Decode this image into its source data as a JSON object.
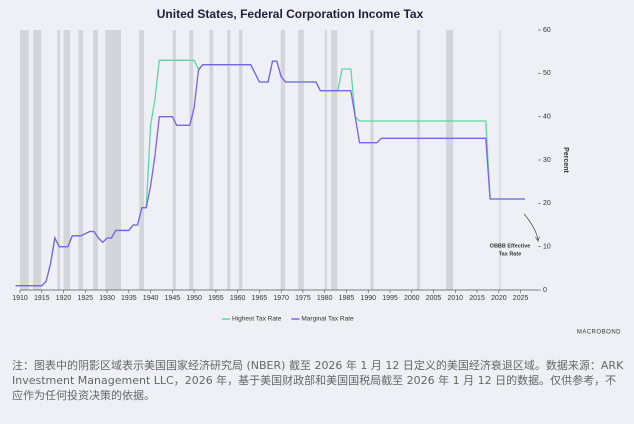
{
  "chart_data": {
    "type": "line",
    "title": "United States, Federal Corporation Income Tax",
    "y_label": "Percent",
    "x": [
      1909,
      1915,
      1916,
      1917,
      1918,
      1919,
      1921,
      1922,
      1924,
      1925,
      1926,
      1927,
      1928,
      1929,
      1930,
      1931,
      1932,
      1935,
      1936,
      1937,
      1938,
      1939,
      1940,
      1941,
      1942,
      1945,
      1946,
      1949,
      1950,
      1951,
      1952,
      1963,
      1964,
      1965,
      1967,
      1968,
      1969,
      1970,
      1971,
      1978,
      1979,
      1983,
      1984,
      1986,
      1987,
      1988,
      1992,
      1993,
      2017,
      2018,
      2026
    ],
    "series": [
      {
        "name": "Highest Tax Rate",
        "color": "#5ed6a2",
        "values": [
          1,
          1,
          2,
          6,
          12,
          10,
          10,
          12.5,
          12.5,
          13,
          13.5,
          13.5,
          12,
          11,
          12,
          12,
          13.75,
          13.75,
          15,
          15,
          19,
          19,
          38,
          44,
          53,
          53,
          53,
          53,
          53,
          51,
          52,
          52,
          50,
          48,
          48,
          52.8,
          52.8,
          49.2,
          48,
          48,
          46,
          46,
          51,
          51,
          40,
          39,
          39,
          39,
          39,
          21,
          21
        ]
      },
      {
        "name": "Marginal Tax Rate",
        "color": "#7a63e8",
        "values": [
          1,
          1,
          2,
          6,
          12,
          10,
          10,
          12.5,
          12.5,
          13,
          13.5,
          13.5,
          12,
          11,
          12,
          12,
          13.75,
          13.75,
          15,
          15,
          19,
          19,
          24,
          31,
          40,
          40,
          38,
          38,
          42,
          50.75,
          52,
          52,
          50,
          48,
          48,
          52.8,
          52.8,
          49.2,
          48,
          48,
          46,
          46,
          46,
          46,
          40,
          34,
          34,
          35,
          35,
          21,
          21
        ]
      }
    ],
    "recessions": [
      [
        1910,
        1912
      ],
      [
        1913,
        1914.9
      ],
      [
        1918.6,
        1919.2
      ],
      [
        1920,
        1921.5
      ],
      [
        1923.4,
        1924.5
      ],
      [
        1926.8,
        1927.9
      ],
      [
        1929.6,
        1933.2
      ],
      [
        1937.4,
        1938.5
      ],
      [
        1945.1,
        1945.8
      ],
      [
        1948.9,
        1949.8
      ],
      [
        1953.5,
        1954.4
      ],
      [
        1957.6,
        1958.3
      ],
      [
        1960.3,
        1961.1
      ],
      [
        1969.9,
        1970.9
      ],
      [
        1973.9,
        1975.2
      ],
      [
        1980,
        1980.5
      ],
      [
        1981.5,
        1982.9
      ],
      [
        1990.5,
        1991.2
      ],
      [
        2001.2,
        2001.9
      ],
      [
        2007.9,
        2009.5
      ],
      [
        2020.1,
        2020.4
      ]
    ],
    "annotation": [
      "OBBB Effective",
      "Tax Rate"
    ],
    "xlim": [
      1910,
      2029
    ],
    "ylim": [
      0,
      60
    ],
    "xticks": [
      1910,
      1915,
      1920,
      1925,
      1930,
      1935,
      1940,
      1945,
      1950,
      1955,
      1960,
      1965,
      1970,
      1975,
      1980,
      1985,
      1990,
      1995,
      2000,
      2005,
      2010,
      2015,
      2020,
      2025
    ],
    "yticks": [
      0,
      10,
      20,
      30,
      40,
      50,
      60
    ],
    "grid": false,
    "legend": "bottom",
    "source_logo": "MACROBOND"
  },
  "footnote": "注：图表中的阴影区域表示美国国家经济研究局 (NBER) 截至 2026 年 1 月 12 日定义的美国经济衰退区域。数据来源：ARK Investment Management LLC，2026 年，基于美国财政部和美国国税局截至 2026 年 1 月 12 日的数据。仅供参考，不应作为任何投资决策的依据。"
}
